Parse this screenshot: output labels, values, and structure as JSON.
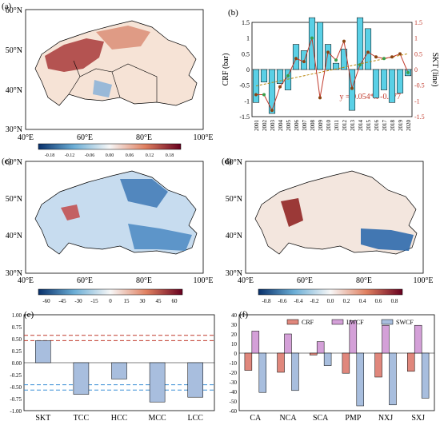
{
  "panels": {
    "a": {
      "label": "(a)",
      "lat_ticks": [
        "60°N",
        "50°N",
        "40°N",
        "30°N"
      ],
      "lon_ticks": [
        "40°E",
        "60°E",
        "80°E",
        "100°E"
      ],
      "colorbar_ticks": [
        "-0.18",
        "-0.12",
        "-0.06",
        "0.00",
        "0.06",
        "0.12",
        "0.18"
      ]
    },
    "c": {
      "label": "(c)",
      "lat_ticks": [
        "60°N",
        "50°N",
        "40°N",
        "30°N"
      ],
      "lon_ticks": [
        "40°E",
        "60°E",
        "80°E",
        "100°E"
      ],
      "colorbar_ticks": [
        "-60",
        "-45",
        "-30",
        "-15",
        "0",
        "15",
        "30",
        "45",
        "60"
      ]
    },
    "d": {
      "label": "(d)",
      "lat_ticks": [
        "60°N",
        "50°N",
        "40°N",
        "30°N"
      ],
      "lon_ticks": [
        "40°E",
        "60°E",
        "80°E",
        "100°E"
      ],
      "colorbar_ticks": [
        "-0.8",
        "-0.6",
        "-0.4",
        "-0.2",
        "0.0",
        "0.2",
        "0.4",
        "0.6",
        "0.8"
      ]
    }
  },
  "colors": {
    "bar_b": "#5ad0e6",
    "line_b": "#c0392b",
    "trend_b": "#b8860b",
    "bar_e": "#a8bede",
    "crf": "#e0877c",
    "lwcf": "#d4a0d8",
    "swcf": "#a8bede",
    "red_dash": "#c0392b",
    "blue_dash": "#3a8fd6"
  },
  "chart_data": [
    {
      "panel": "b",
      "label": "(b)",
      "type": "bar",
      "categories": [
        "2001",
        "2002",
        "2003",
        "2004",
        "2005",
        "2006",
        "2007",
        "2008",
        "2009",
        "2010",
        "2011",
        "2012",
        "2013",
        "2014",
        "2015",
        "2016",
        "2017",
        "2018",
        "2019",
        "2020"
      ],
      "series": [
        {
          "values": [
            -1.05,
            -0.4,
            -1.4,
            -0.45,
            -0.65,
            0.8,
            0.6,
            1.65,
            1.5,
            0.8,
            0.2,
            0.65,
            -1.3,
            1.65,
            1.3,
            -0.9,
            -0.65,
            -1.05,
            -0.75,
            -0.2
          ]
        },
        {
          "type": "line",
          "values": [
            -0.8,
            -0.8,
            -1.3,
            -0.55,
            -0.2,
            0.35,
            0.25,
            1.0,
            -0.9,
            0.55,
            0.3,
            0.9,
            -0.6,
            0.15,
            0.55,
            0.4,
            0.35,
            0.4,
            0.5,
            -0.1
          ]
        }
      ],
      "trend_text": "y = 0.054*x -0.577",
      "ylabel": "CRF (bar)",
      "y2label": "SKT (line)",
      "ylim": [
        -1.5,
        1.5
      ],
      "yticks": [
        "1.5",
        "1",
        "0.5",
        "0",
        "-0.5",
        "-1",
        "-1.5"
      ]
    },
    {
      "panel": "e",
      "label": "(e)",
      "type": "bar",
      "categories": [
        "SKT",
        "TCC",
        "HCC",
        "MCC",
        "LCC"
      ],
      "values": [
        0.46,
        -0.66,
        -0.34,
        -0.82,
        -0.72
      ],
      "ylim": [
        -1.0,
        1.0
      ],
      "yticks": [
        "1.00",
        "0.75",
        "0.50",
        "0.25",
        "0.00",
        "-0.25",
        "-0.50",
        "-0.75",
        "-1.00"
      ],
      "significance_lines": [
        0.57,
        0.46,
        -0.46,
        -0.57
      ]
    },
    {
      "panel": "f",
      "label": "(f)",
      "type": "bar",
      "categories": [
        "CA",
        "NCA",
        "SCA",
        "PMP",
        "NXJ",
        "SXJ"
      ],
      "series": [
        {
          "name": "CRF",
          "values": [
            -18,
            -20,
            -2,
            -21,
            -25,
            -19
          ]
        },
        {
          "name": "LWCF",
          "values": [
            23,
            20,
            12,
            34,
            29,
            29
          ]
        },
        {
          "name": "SWCF",
          "values": [
            -41,
            -39,
            -13,
            -55,
            -54,
            -47
          ]
        }
      ],
      "ylim": [
        -60,
        40
      ],
      "yticks": [
        "40",
        "30",
        "20",
        "10",
        "0",
        "-10",
        "-20",
        "-30",
        "-40",
        "-50",
        "-60"
      ]
    }
  ]
}
